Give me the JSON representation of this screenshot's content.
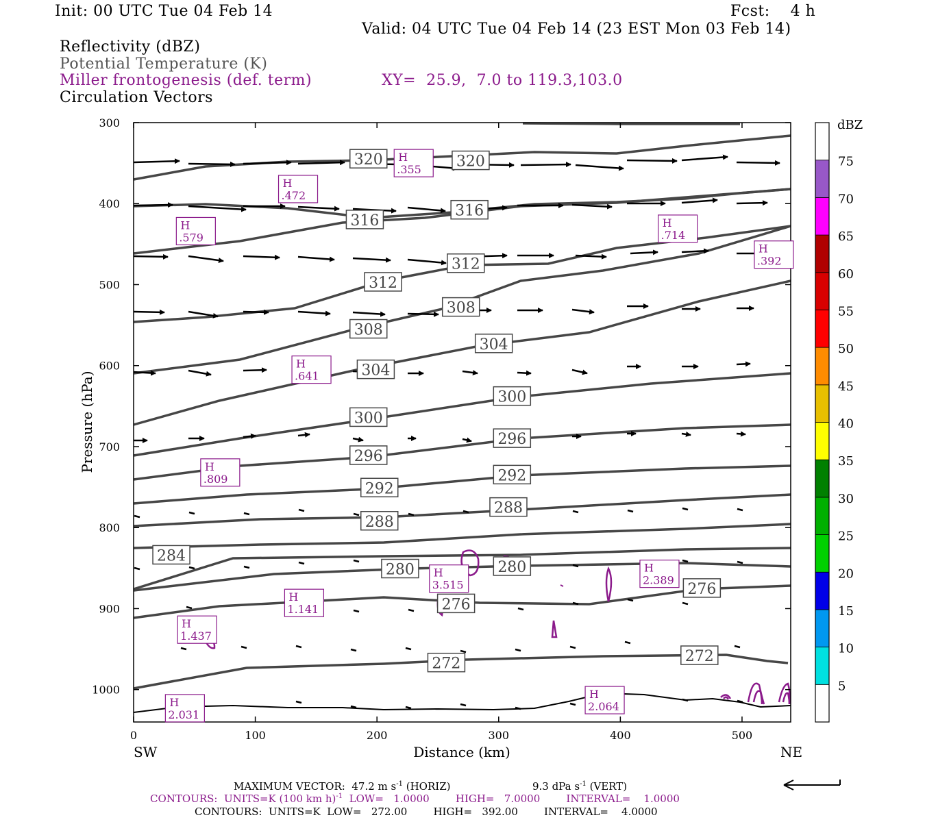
{
  "header": {
    "init": "Init: 00 UTC Tue 04 Feb 14",
    "fcst": "Fcst:    4 h",
    "valid": "Valid: 04 UTC Tue 04 Feb 14 (23 EST Mon 03 Feb 14)"
  },
  "fields": {
    "reflectivity": "Reflectivity (dBZ)",
    "theta": "Potential Temperature (K)",
    "miller": "Miller frontogenesis (def. term)",
    "xy": "XY=  25.9,  7.0 to 119.3,103.0",
    "vectors": "Circulation Vectors"
  },
  "footer": {
    "maxvec": "MAXIMUM VECTOR:  47.2 m s",
    "maxvec_sup": "-1",
    "horiz": " (HORIZ)",
    "vert_val": "9.3 dPa s",
    "vert_sup": "-1",
    "vert": " (VERT)",
    "contours1_a": "CONTOURS:  UNITS=K (100 km h)",
    "contours1_sup": "-1",
    "contours1_b": "  LOW=   1.0000        HIGH=   7.0000        INTERVAL=    1.0000",
    "contours2": "CONTOURS:  UNITS=K  LOW=   272.00        HIGH=   392.00        INTERVAL=    4.0000"
  },
  "colors": {
    "theta": "#464646",
    "miller": "#8b1a8b",
    "vectors": "#000000"
  },
  "chart_data": {
    "type": "cross-section",
    "xlabel": "Distance (km)",
    "ylabel": "Pressure (hPa)",
    "xlim": [
      0,
      540
    ],
    "ylim": [
      1040,
      300
    ],
    "xticks": [
      0,
      100,
      200,
      300,
      400,
      500
    ],
    "yticks": [
      300,
      400,
      500,
      600,
      700,
      800,
      900,
      1000
    ],
    "left_end_label": "SW",
    "right_end_label": "NE",
    "theta_labels": [
      {
        "text": "320",
        "x": 193,
        "p": 345
      },
      {
        "text": "320",
        "x": 277,
        "p": 347
      },
      {
        "text": "316",
        "x": 190,
        "p": 420
      },
      {
        "text": "316",
        "x": 276,
        "p": 408
      },
      {
        "text": "312",
        "x": 205,
        "p": 497
      },
      {
        "text": "312",
        "x": 273,
        "p": 474
      },
      {
        "text": "308",
        "x": 193,
        "p": 555
      },
      {
        "text": "308",
        "x": 269,
        "p": 528
      },
      {
        "text": "304",
        "x": 199,
        "p": 605
      },
      {
        "text": "304",
        "x": 296,
        "p": 573
      },
      {
        "text": "300",
        "x": 193,
        "p": 664
      },
      {
        "text": "300",
        "x": 311,
        "p": 638
      },
      {
        "text": "296",
        "x": 193,
        "p": 711
      },
      {
        "text": "296",
        "x": 311,
        "p": 690
      },
      {
        "text": "292",
        "x": 202,
        "p": 751
      },
      {
        "text": "292",
        "x": 311,
        "p": 735
      },
      {
        "text": "288",
        "x": 202,
        "p": 792
      },
      {
        "text": "288",
        "x": 308,
        "p": 775
      },
      {
        "text": "284",
        "x": 31,
        "p": 834
      },
      {
        "text": "280",
        "x": 219,
        "p": 851
      },
      {
        "text": "280",
        "x": 311,
        "p": 848
      },
      {
        "text": "276",
        "x": 265,
        "p": 894
      },
      {
        "text": "276",
        "x": 467,
        "p": 875
      },
      {
        "text": "272",
        "x": 257,
        "p": 967
      },
      {
        "text": "272",
        "x": 465,
        "p": 958
      }
    ],
    "frontogenesis_highs": [
      {
        "value": ".355",
        "x": 231,
        "p": 350
      },
      {
        "value": ".472",
        "x": 136,
        "p": 382
      },
      {
        "value": ".579",
        "x": 52,
        "p": 434
      },
      {
        "value": ".714",
        "x": 448,
        "p": 431
      },
      {
        "value": ".392",
        "x": 527,
        "p": 463
      },
      {
        "value": ".641",
        "x": 147,
        "p": 605
      },
      {
        "value": ".809",
        "x": 72,
        "p": 732
      },
      {
        "value": "3.515",
        "x": 260,
        "p": 863
      },
      {
        "value": "2.389",
        "x": 433,
        "p": 857
      },
      {
        "value": "1.141",
        "x": 141,
        "p": 893
      },
      {
        "value": "1.437",
        "x": 53,
        "p": 926
      },
      {
        "value": "2.031",
        "x": 43,
        "p": 1023
      },
      {
        "value": "2.064",
        "x": 388,
        "p": 1013
      }
    ],
    "dbz_colorbar": {
      "unit": "dBZ",
      "labels": [
        "5",
        "10",
        "15",
        "20",
        "25",
        "30",
        "35",
        "40",
        "45",
        "50",
        "55",
        "60",
        "65",
        "70",
        "75"
      ],
      "colors": [
        "#ffffff",
        "#00e0e0",
        "#0098f0",
        "#0000e8",
        "#00d000",
        "#00b000",
        "#008000",
        "#ffff00",
        "#e8c000",
        "#ff8c00",
        "#ff0000",
        "#d80000",
        "#b00000",
        "#ff00ff",
        "#9858c8",
        "#ffffff"
      ]
    }
  }
}
